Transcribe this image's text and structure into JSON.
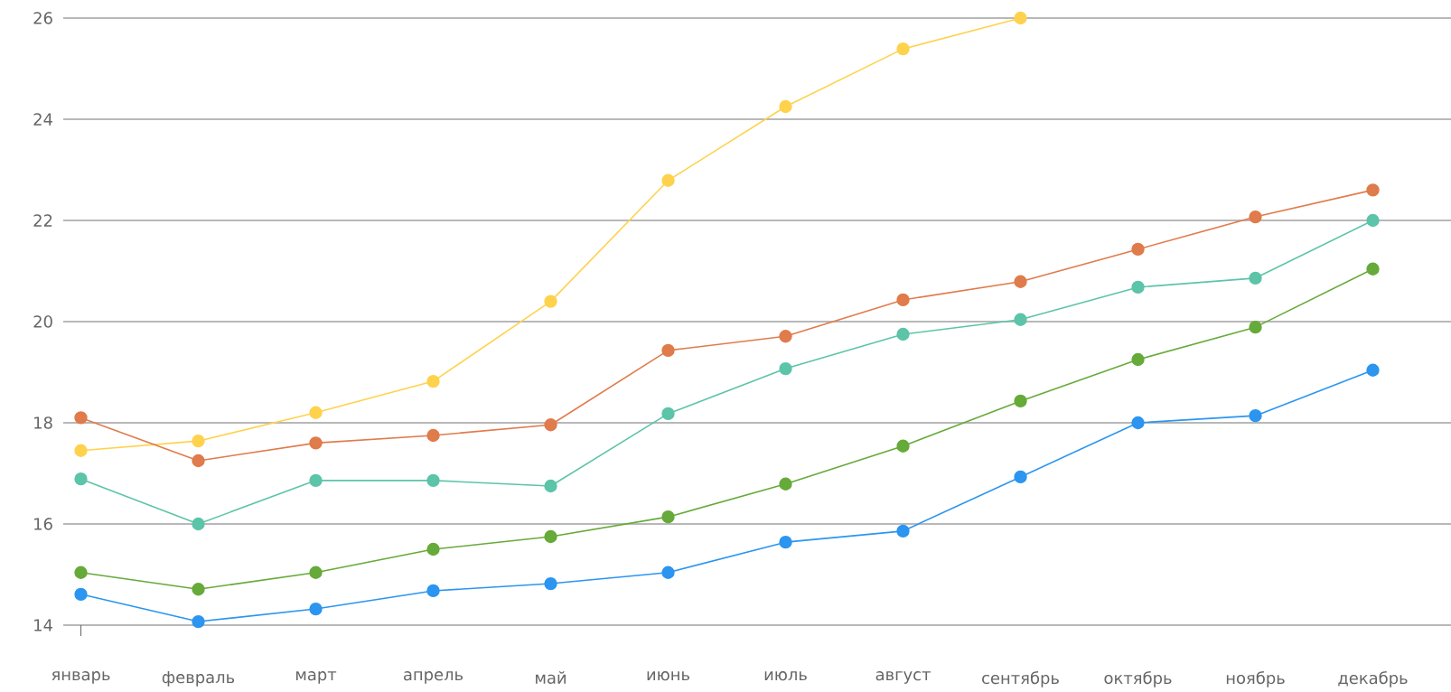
{
  "chart_data": {
    "type": "line",
    "categories": [
      "январь",
      "февраль",
      "март",
      "апрель",
      "май",
      "июнь",
      "июль",
      "август",
      "сентябрь",
      "октябрь",
      "ноябрь",
      "декабрь"
    ],
    "series": [
      {
        "color": "#ffd24d",
        "values": [
          17.45,
          17.64,
          18.2,
          18.82,
          20.4,
          22.79,
          24.25,
          25.39,
          26.0,
          null,
          null,
          null
        ]
      },
      {
        "color": "#e07b4b",
        "values": [
          18.1,
          17.25,
          17.6,
          17.75,
          17.96,
          19.43,
          19.71,
          20.43,
          20.79,
          21.43,
          22.07,
          22.6
        ]
      },
      {
        "color": "#5cc4a8",
        "values": [
          16.89,
          16.0,
          16.86,
          16.86,
          16.75,
          18.18,
          19.07,
          19.75,
          20.04,
          20.68,
          20.86,
          22.0
        ]
      },
      {
        "color": "#66aa3a",
        "values": [
          15.04,
          14.71,
          15.04,
          15.5,
          15.75,
          16.14,
          16.79,
          17.54,
          18.43,
          19.25,
          19.89,
          21.04
        ]
      },
      {
        "color": "#2b95f0",
        "values": [
          14.61,
          14.07,
          14.32,
          14.68,
          14.82,
          15.04,
          15.64,
          15.86,
          16.93,
          18.0,
          18.14,
          19.04
        ]
      }
    ],
    "ylim": [
      14,
      26
    ],
    "yticks": [
      14,
      16,
      18,
      20,
      22,
      24,
      26
    ],
    "grid": "y",
    "marker": "circle",
    "line_style": "solid"
  }
}
